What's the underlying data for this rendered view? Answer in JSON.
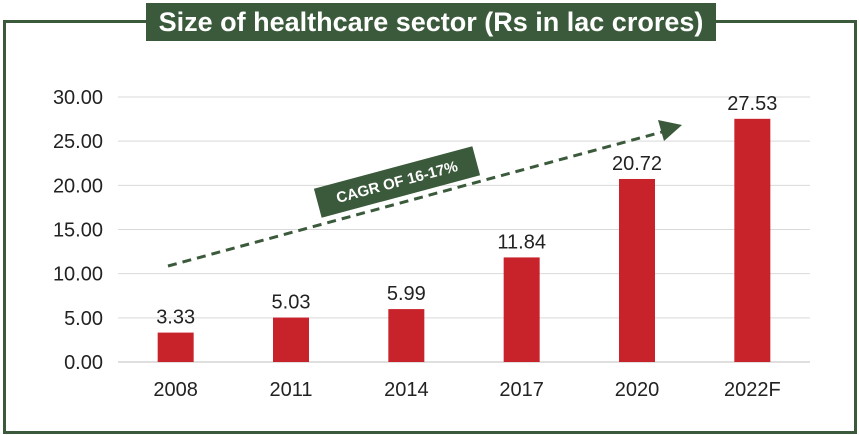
{
  "chart_data": {
    "type": "bar",
    "title": "Size of healthcare sector (Rs in lac crores)",
    "categories": [
      "2008",
      "2011",
      "2014",
      "2017",
      "2020",
      "2022F"
    ],
    "values": [
      3.33,
      5.03,
      5.99,
      11.84,
      20.72,
      27.53
    ],
    "value_labels": [
      "3.33",
      "5.03",
      "5.99",
      "11.84",
      "20.72",
      "27.53"
    ],
    "ylim": [
      0,
      30
    ],
    "yticks": [
      "0.00",
      "5.00",
      "10.00",
      "15.00",
      "20.00",
      "25.00",
      "30.00"
    ],
    "ytick_values": [
      0,
      5,
      10,
      15,
      20,
      25,
      30
    ],
    "xlabel": "",
    "ylabel": "",
    "grid": true,
    "annotation": "CAGR OF 16-17%",
    "colors": {
      "bar": "#c8232b",
      "frame": "#3b5a3b",
      "annotation_box": "#3b5a3b",
      "trend_arrow": "#3b5a3b",
      "grid": "#d9d9d9"
    }
  }
}
